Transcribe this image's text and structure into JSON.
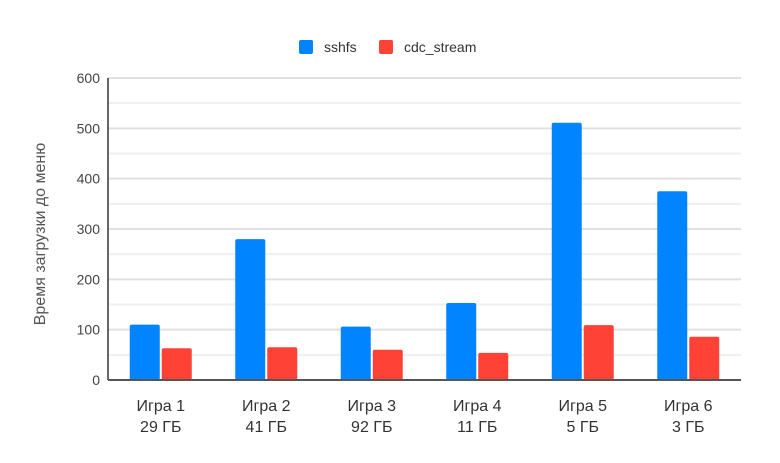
{
  "chart_data": {
    "type": "bar",
    "title": "",
    "xlabel": "",
    "ylabel": "Время загрузки до меню",
    "ylim": [
      0,
      600
    ],
    "yticks": [
      0,
      100,
      200,
      300,
      400,
      500,
      600
    ],
    "minor_grid_step": 50,
    "grid": true,
    "legend_placement": "top",
    "categories": [
      [
        "Игра 1",
        "29 ГБ"
      ],
      [
        "Игра 2",
        "41 ГБ"
      ],
      [
        "Игра 3",
        "92 ГБ"
      ],
      [
        "Игра 4",
        "11 ГБ"
      ],
      [
        "Игра 5",
        "5 ГБ"
      ],
      [
        "Игра 6",
        "3 ГБ"
      ]
    ],
    "series": [
      {
        "name": "sshfs",
        "color": "#0084ff",
        "values": [
          110,
          280,
          106,
          153,
          511,
          375
        ]
      },
      {
        "name": "cdc_stream",
        "color": "#ff4136",
        "values": [
          63,
          65,
          60,
          54,
          109,
          86
        ]
      }
    ]
  }
}
